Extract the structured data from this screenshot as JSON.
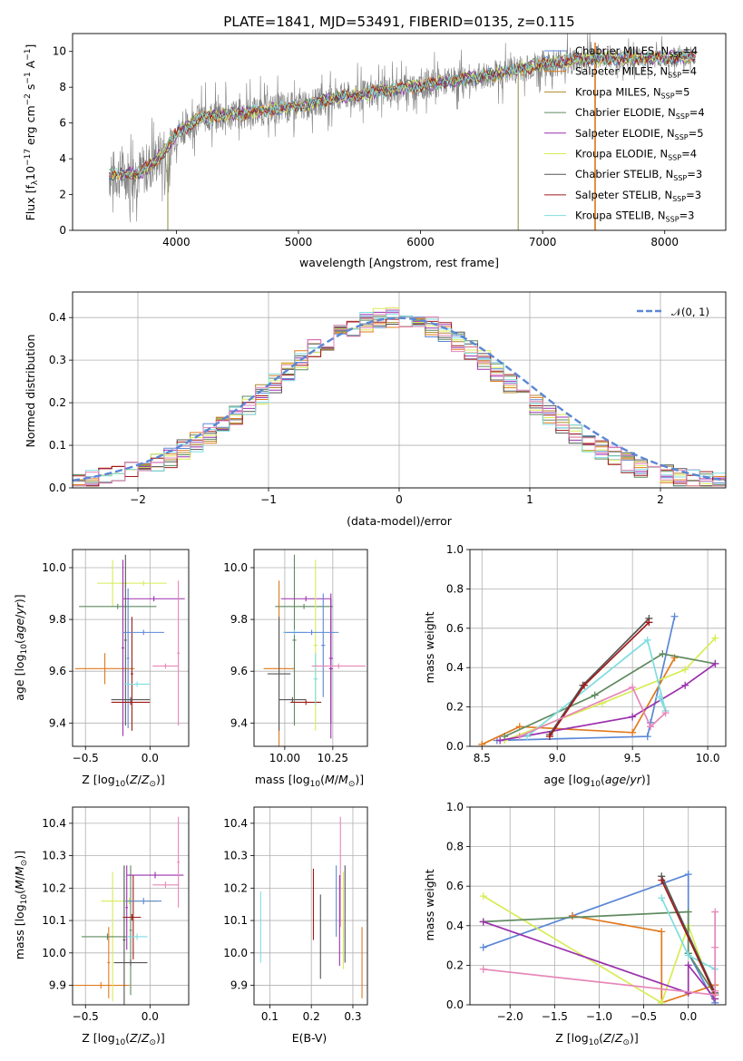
{
  "title": "PLATE=1841, MJD=53491, FIBERID=0135, z=0.115",
  "colors": {
    "Chabrier MILES": "#5b87d6",
    "Salpeter MILES": "#e07a1f",
    "Kroupa MILES": "#b08a2a",
    "Chabrier ELODIE": "#5f8a5f",
    "Salpeter ELODIE": "#9b30ad",
    "Kroupa ELODIE": "#d8ec55",
    "Chabrier STELIB": "#555555",
    "Salpeter STELIB": "#a01a1a",
    "Kroupa STELIB": "#7fdde0",
    "data": "#808080",
    "pink": "#e686b8",
    "normal": "#5b87d6"
  },
  "chart_data": [
    {
      "type": "line",
      "panel": "spectrum",
      "xlabel": "wavelength [Angstrom, rest frame]",
      "ylabel": "Flux [f_λ 10^-17 erg cm^-2 s^-1 A^-1]",
      "xlim": [
        3150,
        8500
      ],
      "ylim": [
        0,
        11
      ],
      "xticks": [
        4000,
        5000,
        6000,
        7000,
        8000
      ],
      "yticks": [
        0,
        2,
        4,
        6,
        8,
        10
      ],
      "legend_position": "top-right",
      "legend": [
        "Chabrier MILES, N_SSP=4",
        "Salpeter MILES, N_SSP=4",
        "Kroupa MILES, N_SSP=5",
        "Chabrier ELODIE, N_SSP=4",
        "Salpeter ELODIE, N_SSP=5",
        "Kroupa ELODIE, N_SSP=4",
        "Chabrier STELIB, N_SSP=3",
        "Salpeter STELIB, N_SSP=3",
        "Kroupa STELIB, N_SSP=3"
      ],
      "continuum": {
        "x": [
          3500,
          3700,
          3800,
          3900,
          4000,
          4200,
          4500,
          4800,
          5000,
          5300,
          5600,
          6000,
          6300,
          6600,
          7000,
          7400,
          7800,
          8200
        ],
        "y": [
          3.1,
          3.2,
          3.7,
          4.4,
          5.4,
          6.3,
          6.5,
          6.8,
          6.9,
          7.4,
          7.7,
          8.1,
          8.4,
          8.7,
          9.3,
          9.6,
          9.6,
          9.7
        ]
      }
    },
    {
      "type": "bar",
      "panel": "residual_histogram",
      "xlabel": "(data-model)/error",
      "ylabel": "Normed distribution",
      "xlim": [
        -2.5,
        2.5
      ],
      "ylim": [
        0,
        0.46
      ],
      "xticks": [
        -2,
        -1,
        0,
        1,
        2
      ],
      "xtick_labels": [
        "−2",
        "−1",
        "0",
        "1",
        "2"
      ],
      "yticks": [
        0,
        0.1,
        0.2,
        0.3,
        0.4
      ],
      "ytick_labels": [
        "0.0",
        "0.1",
        "0.2",
        "0.3",
        "0.4"
      ],
      "bin_width": 0.1,
      "series_label": "𝒩(0, 1)",
      "legend_position": "top-right",
      "grid": true
    },
    {
      "type": "scatter",
      "panel": "Z_vs_age",
      "xlabel": "Z [log10(Z/Z⊙)]",
      "ylabel": "age  [log10(age/yr)]",
      "xlim": [
        -0.6,
        0.3
      ],
      "ylim": [
        9.31,
        10.07
      ],
      "xticks": [
        -0.5,
        0.0
      ],
      "xtick_labels": [
        "−0.5",
        "0.0"
      ],
      "yticks": [
        9.4,
        9.6,
        9.8,
        10.0
      ],
      "ytick_labels": [
        "9.4",
        "9.6",
        "9.8",
        "10.0"
      ],
      "grid": true,
      "points": [
        {
          "series": "Salpeter MILES",
          "x": -0.35,
          "xerr": 0.23,
          "y": 9.61,
          "yerr": 0.06
        },
        {
          "series": "Kroupa ELODIE",
          "x": -0.29,
          "xerr": 0.12,
          "y": 9.94,
          "yerr": 0.09
        },
        {
          "series": "Kroupa ELODIE",
          "x": -0.05,
          "xerr": 0.18,
          "y": 9.94,
          "yerr": 0.01
        },
        {
          "series": "Chabrier ELODIE",
          "x": -0.25,
          "xerr": 0.3,
          "y": 9.85,
          "yerr": 0.01
        },
        {
          "series": "Chabrier STELIB",
          "x": -0.19,
          "xerr": 0.01,
          "y": 9.72,
          "yerr": 0.33
        },
        {
          "series": "Salpeter ELODIE",
          "x": -0.21,
          "xerr": 0.01,
          "y": 9.69,
          "yerr": 0.34
        },
        {
          "series": "Chabrier MILES",
          "x": -0.17,
          "xerr": 0.01,
          "y": 9.65,
          "yerr": 0.27
        },
        {
          "series": "Salpeter STELIB",
          "x": -0.14,
          "xerr": 0.01,
          "y": 9.59,
          "yerr": 0.22
        },
        {
          "series": "Salpeter STELIB",
          "x": -0.15,
          "xerr": 0.15,
          "y": 9.48,
          "yerr": 0.01
        },
        {
          "series": "Chabrier STELIB",
          "x": -0.15,
          "xerr": 0.15,
          "y": 9.49,
          "yerr": 0.01
        },
        {
          "series": "Salpeter ELODIE",
          "x": 0.03,
          "xerr": 0.24,
          "y": 9.88,
          "yerr": 0.01
        },
        {
          "series": "Chabrier MILES",
          "x": -0.05,
          "xerr": 0.16,
          "y": 9.75,
          "yerr": 0.01
        },
        {
          "series": "Kroupa STELIB",
          "x": -0.1,
          "xerr": 0.1,
          "y": 9.55,
          "yerr": 0.01
        },
        {
          "series": "pink",
          "x": 0.22,
          "xerr": 0.01,
          "y": 9.67,
          "yerr": 0.28
        },
        {
          "series": "pink",
          "x": 0.12,
          "xerr": 0.1,
          "y": 9.62,
          "yerr": 0.01
        }
      ]
    },
    {
      "type": "scatter",
      "panel": "mass_vs_age",
      "xlabel": "mass [log10(M/M⊙)]",
      "ylabel": "",
      "xlim": [
        9.84,
        10.43
      ],
      "ylim": [
        9.31,
        10.07
      ],
      "xticks": [
        10.0,
        10.25
      ],
      "xtick_labels": [
        "10.00",
        "10.25"
      ],
      "yticks": [
        9.4,
        9.6,
        9.8,
        10.0
      ],
      "ytick_labels": [
        "9.4",
        "9.6",
        "9.8",
        "10.0"
      ],
      "grid": true,
      "points": [
        {
          "series": "Salpeter MILES",
          "x": 9.97,
          "xerr": 0.08,
          "y": 9.61,
          "yerr": 0.34
        },
        {
          "series": "Chabrier STELIB",
          "x": 9.97,
          "xerr": 0.06,
          "y": 9.59,
          "yerr": 0.22
        },
        {
          "series": "Chabrier STELIB",
          "x": 10.04,
          "xerr": 0.07,
          "y": 9.49,
          "yerr": 0.01
        },
        {
          "series": "Chabrier ELODIE",
          "x": 10.05,
          "xerr": 0.01,
          "y": 9.72,
          "yerr": 0.33
        },
        {
          "series": "Kroupa STELIB",
          "x": 10.05,
          "xerr": 0.06,
          "y": 9.75,
          "yerr": 0.01
        },
        {
          "series": "Chabrier ELODIE",
          "x": 10.1,
          "xerr": 0.15,
          "y": 9.85,
          "yerr": 0.01
        },
        {
          "series": "Salpeter ELODIE",
          "x": 10.11,
          "xerr": 0.13,
          "y": 9.88,
          "yerr": 0.01
        },
        {
          "series": "Kroupa ELODIE",
          "x": 10.16,
          "xerr": 0.01,
          "y": 9.7,
          "yerr": 0.33
        },
        {
          "series": "Salpeter STELIB",
          "x": 10.11,
          "xerr": 0.08,
          "y": 9.48,
          "yerr": 0.01
        },
        {
          "series": "Salpeter ELODIE",
          "x": 10.24,
          "xerr": 0.01,
          "y": 9.61,
          "yerr": 0.27
        },
        {
          "series": "Salpeter ELODIE",
          "x": 10.24,
          "xerr": 0.01,
          "y": 9.65,
          "yerr": 0.25
        },
        {
          "series": "Chabrier MILES",
          "x": 10.2,
          "xerr": 0.01,
          "y": 9.7,
          "yerr": 0.2
        },
        {
          "series": "Kroupa STELIB",
          "x": 10.16,
          "xerr": 0.01,
          "y": 9.57,
          "yerr": 0.1
        },
        {
          "series": "pink",
          "x": 10.28,
          "xerr": 0.14,
          "y": 9.62,
          "yerr": 0.01
        },
        {
          "series": "Chabrier MILES",
          "x": 10.14,
          "xerr": 0.14,
          "y": 9.75,
          "yerr": 0.01
        }
      ]
    },
    {
      "type": "line",
      "panel": "age_vs_massweight",
      "xlabel": "age  [log10(age/yr)]",
      "ylabel": "mass weight",
      "xlim": [
        8.42,
        10.12
      ],
      "ylim": [
        0,
        1
      ],
      "xticks": [
        8.5,
        9.0,
        9.5,
        10.0
      ],
      "xtick_labels": [
        "8.5",
        "9.0",
        "9.5",
        "10.0"
      ],
      "yticks": [
        0.0,
        0.2,
        0.4,
        0.6,
        0.8,
        1.0
      ],
      "ytick_labels": [
        "0.0",
        "0.2",
        "0.4",
        "0.6",
        "0.8",
        "1.0"
      ],
      "grid": true,
      "series": [
        {
          "name": "Chabrier MILES",
          "x": [
            8.6,
            9.6,
            9.78,
            9.62
          ],
          "y": [
            0.03,
            0.05,
            0.66,
            0.12
          ]
        },
        {
          "name": "Salpeter MILES",
          "x": [
            8.5,
            8.75,
            9.5,
            9.78
          ],
          "y": [
            0.01,
            0.1,
            0.07,
            0.45
          ]
        },
        {
          "name": "Kroupa ELODIE",
          "x": [
            8.65,
            9.3,
            9.85,
            10.05
          ],
          "y": [
            0.03,
            0.22,
            0.39,
            0.55
          ]
        },
        {
          "name": "Chabrier ELODIE",
          "x": [
            8.65,
            9.25,
            9.7,
            10.05
          ],
          "y": [
            0.05,
            0.26,
            0.47,
            0.42
          ]
        },
        {
          "name": "Salpeter ELODIE",
          "x": [
            8.62,
            9.5,
            9.85,
            10.05
          ],
          "y": [
            0.03,
            0.15,
            0.31,
            0.42
          ]
        },
        {
          "name": "Kroupa STELIB",
          "x": [
            8.8,
            9.6,
            9.72,
            9.68
          ],
          "y": [
            0.05,
            0.54,
            0.18,
            0.25
          ]
        },
        {
          "name": "Chabrier STELIB",
          "x": [
            8.95,
            9.17,
            9.61
          ],
          "y": [
            0.06,
            0.31,
            0.65
          ]
        },
        {
          "name": "Salpeter STELIB",
          "x": [
            8.95,
            9.18,
            9.61
          ],
          "y": [
            0.05,
            0.31,
            0.63
          ]
        },
        {
          "name": "pink",
          "x": [
            8.75,
            9.5,
            9.62,
            9.72
          ],
          "y": [
            0.05,
            0.3,
            0.1,
            0.17
          ]
        }
      ]
    },
    {
      "type": "scatter",
      "panel": "Z_vs_mass",
      "xlabel": "Z [log10(Z/Z⊙)]",
      "ylabel": "mass [log10(M/M⊙)]",
      "xlim": [
        -0.6,
        0.3
      ],
      "ylim": [
        9.84,
        10.45
      ],
      "xticks": [
        -0.5,
        0.0
      ],
      "xtick_labels": [
        "−0.5",
        "0.0"
      ],
      "yticks": [
        9.9,
        10.0,
        10.1,
        10.2,
        10.3,
        10.4
      ],
      "ytick_labels": [
        "9.9",
        "10.0",
        "10.1",
        "10.2",
        "10.3",
        "10.4"
      ],
      "grid": true,
      "points": [
        {
          "series": "Salpeter MILES",
          "x": -0.38,
          "xerr": 0.22,
          "y": 9.9,
          "yerr": 0.01
        },
        {
          "series": "Salpeter MILES",
          "x": -0.32,
          "xerr": 0.01,
          "y": 9.97,
          "yerr": 0.11
        },
        {
          "series": "Kroupa ELODIE",
          "x": -0.29,
          "xerr": 0.01,
          "y": 10.05,
          "yerr": 0.2
        },
        {
          "series": "Chabrier ELODIE",
          "x": -0.33,
          "xerr": 0.2,
          "y": 10.05,
          "yerr": 0.01
        },
        {
          "series": "Kroupa ELODIE",
          "x": -0.16,
          "xerr": 0.22,
          "y": 10.16,
          "yerr": 0.01
        },
        {
          "series": "Chabrier STELIB",
          "x": -0.2,
          "xerr": 0.01,
          "y": 10.04,
          "yerr": 0.23
        },
        {
          "series": "Salpeter ELODIE",
          "x": -0.18,
          "xerr": 0.01,
          "y": 10.14,
          "yerr": 0.13
        },
        {
          "series": "Chabrier ELODIE",
          "x": -0.15,
          "xerr": 0.01,
          "y": 10.07,
          "yerr": 0.2
        },
        {
          "series": "Salpeter STELIB",
          "x": -0.13,
          "xerr": 0.01,
          "y": 10.11,
          "yerr": 0.13
        },
        {
          "series": "Chabrier STELIB",
          "x": -0.15,
          "xerr": 0.13,
          "y": 9.97,
          "yerr": 0.01
        },
        {
          "series": "Salpeter STELIB",
          "x": -0.14,
          "xerr": 0.07,
          "y": 10.11,
          "yerr": 0.01
        },
        {
          "series": "Salpeter ELODIE",
          "x": 0.04,
          "xerr": 0.22,
          "y": 10.24,
          "yerr": 0.01
        },
        {
          "series": "Chabrier MILES",
          "x": -0.05,
          "xerr": 0.14,
          "y": 10.16,
          "yerr": 0.01
        },
        {
          "series": "Kroupa STELIB",
          "x": -0.1,
          "xerr": 0.08,
          "y": 10.05,
          "yerr": 0.01
        },
        {
          "series": "pink",
          "x": 0.22,
          "xerr": 0.01,
          "y": 10.28,
          "yerr": 0.14
        },
        {
          "series": "pink",
          "x": 0.12,
          "xerr": 0.1,
          "y": 10.21,
          "yerr": 0.01
        }
      ]
    },
    {
      "type": "scatter",
      "panel": "EBV_vs_mass",
      "xlabel": "E(B-V)",
      "ylabel": "",
      "xlim": [
        0.062,
        0.335
      ],
      "ylim": [
        9.84,
        10.45
      ],
      "xticks": [
        0.1,
        0.2,
        0.3
      ],
      "xtick_labels": [
        "0.1",
        "0.2",
        "0.3"
      ],
      "yticks": [
        9.9,
        10.0,
        10.1,
        10.2,
        10.3,
        10.4
      ],
      "ytick_labels": [
        "9.9",
        "10.0",
        "10.1",
        "10.2",
        "10.3",
        "10.4"
      ],
      "grid": true,
      "points": [
        {
          "series": "Kroupa STELIB",
          "x": 0.078,
          "y": 10.08,
          "yerr": 0.11
        },
        {
          "series": "Salpeter STELIB",
          "x": 0.205,
          "y": 10.15,
          "yerr": 0.11
        },
        {
          "series": "Chabrier STELIB",
          "x": 0.222,
          "y": 10.05,
          "yerr": 0.13
        },
        {
          "series": "Chabrier MILES",
          "x": 0.26,
          "y": 10.16,
          "yerr": 0.11
        },
        {
          "series": "pink",
          "x": 0.27,
          "y": 10.25,
          "yerr": 0.17
        },
        {
          "series": "Salpeter ELODIE",
          "x": 0.268,
          "y": 10.1,
          "yerr": 0.14
        },
        {
          "series": "Kroupa ELODIE",
          "x": 0.277,
          "y": 10.1,
          "yerr": 0.15
        },
        {
          "series": "Chabrier STELIB",
          "x": 0.281,
          "y": 10.12,
          "yerr": 0.15
        },
        {
          "series": "Salpeter MILES",
          "x": 0.322,
          "y": 9.97,
          "yerr": 0.11
        }
      ]
    },
    {
      "type": "line",
      "panel": "Z_vs_massweight",
      "xlabel": "Z [log10(Z/Z⊙)]",
      "ylabel": "mass weight",
      "xlim": [
        -2.45,
        0.42
      ],
      "ylim": [
        0,
        1
      ],
      "xticks": [
        -2.0,
        -1.5,
        -1.0,
        -0.5,
        0.0
      ],
      "xtick_labels": [
        "−2.0",
        "−1.5",
        "−1.0",
        "−0.5",
        "0.0"
      ],
      "yticks": [
        0.0,
        0.2,
        0.4,
        0.6,
        0.8,
        1.0
      ],
      "ytick_labels": [
        "0.0",
        "0.2",
        "0.4",
        "0.6",
        "0.8",
        "1.0"
      ],
      "grid": true,
      "series": [
        {
          "name": "Chabrier MILES",
          "x": [
            -2.3,
            -1.3,
            0.0,
            0.0,
            0.3
          ],
          "y": [
            0.29,
            0.45,
            0.66,
            0.26,
            0.01
          ]
        },
        {
          "name": "Salpeter MILES",
          "x": [
            -1.3,
            -0.3,
            -0.3,
            0.3
          ],
          "y": [
            0.45,
            0.37,
            0.01,
            0.1
          ]
        },
        {
          "name": "Kroupa ELODIE",
          "x": [
            -2.3,
            -0.3,
            0.0,
            0.3
          ],
          "y": [
            0.55,
            0.01,
            0.4,
            0.03
          ]
        },
        {
          "name": "Chabrier ELODIE",
          "x": [
            -2.3,
            0.0,
            0.0,
            0.3
          ],
          "y": [
            0.42,
            0.47,
            0.26,
            0.05
          ]
        },
        {
          "name": "Salpeter ELODIE",
          "x": [
            -2.3,
            0.0,
            0.0,
            0.3
          ],
          "y": [
            0.42,
            0.06,
            0.2,
            0.03
          ]
        },
        {
          "name": "Kroupa STELIB",
          "x": [
            -0.3,
            0.0,
            0.3
          ],
          "y": [
            0.54,
            0.25,
            0.18
          ]
        },
        {
          "name": "Chabrier STELIB",
          "x": [
            -0.3,
            0.3
          ],
          "y": [
            0.65,
            0.06
          ]
        },
        {
          "name": "Salpeter STELIB",
          "x": [
            -0.3,
            0.3
          ],
          "y": [
            0.63,
            0.05
          ]
        },
        {
          "name": "pink",
          "x": [
            -2.3,
            0.3
          ],
          "y": [
            0.18,
            0.05
          ]
        },
        {
          "name": "pink",
          "x": [
            0.3,
            0.3,
            0.3
          ],
          "y": [
            0.47,
            0.29,
            0.07
          ]
        }
      ]
    }
  ]
}
